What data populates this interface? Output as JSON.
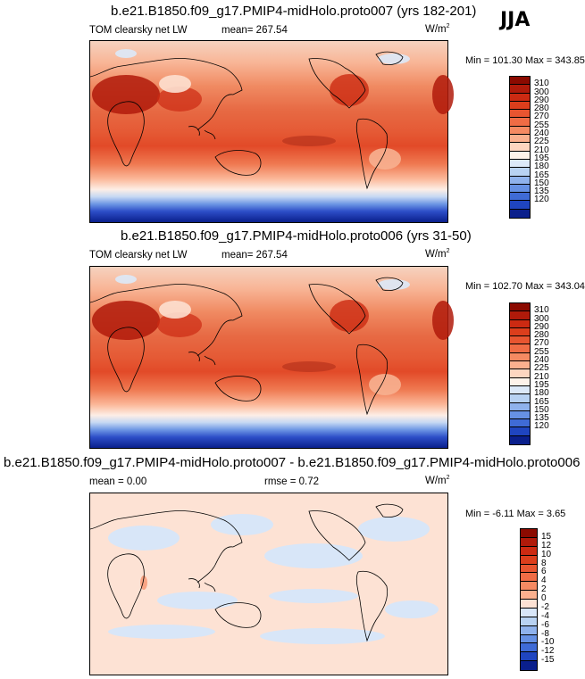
{
  "season": "JJA",
  "panels": [
    {
      "title": "b.e21.B1850.f09_g17.PMIP4-midHolo.proto007 (yrs 182-201)",
      "left_label": "TOM clearsky net LW",
      "center_label": "mean= 267.54",
      "units": "W/m",
      "units_sup": "2",
      "minmax": "Min = 101.30 Max = 343.85",
      "colorbar_labels": [
        "310",
        "300",
        "290",
        "280",
        "270",
        "255",
        "240",
        "225",
        "210",
        "195",
        "180",
        "165",
        "150",
        "135",
        "120"
      ],
      "colorbar_colors": [
        "#8b0a00",
        "#b01a0a",
        "#cc2a12",
        "#dc3e1c",
        "#e85530",
        "#f06c45",
        "#f68a62",
        "#fbb08e",
        "#fdd6c0",
        "#fef3ea",
        "#dce9f8",
        "#b8d2f2",
        "#8fb2ec",
        "#6691e4",
        "#3f6bd6",
        "#1f45c0",
        "#0a1f8c"
      ]
    },
    {
      "title": "b.e21.B1850.f09_g17.PMIP4-midHolo.proto006 (yrs 31-50)",
      "left_label": "TOM clearsky net LW",
      "center_label": "mean= 267.54",
      "units": "W/m",
      "units_sup": "2",
      "minmax": "Min = 102.70 Max = 343.04",
      "colorbar_labels": [
        "310",
        "300",
        "290",
        "280",
        "270",
        "255",
        "240",
        "225",
        "210",
        "195",
        "180",
        "165",
        "150",
        "135",
        "120"
      ],
      "colorbar_colors": [
        "#8b0a00",
        "#b01a0a",
        "#cc2a12",
        "#dc3e1c",
        "#e85530",
        "#f06c45",
        "#f68a62",
        "#fbb08e",
        "#fdd6c0",
        "#fef3ea",
        "#dce9f8",
        "#b8d2f2",
        "#8fb2ec",
        "#6691e4",
        "#3f6bd6",
        "#1f45c0",
        "#0a1f8c"
      ]
    },
    {
      "title": "b.e21.B1850.f09_g17.PMIP4-midHolo.proto007 - b.e21.B1850.f09_g17.PMIP4-midHolo.proto006",
      "left_label": "mean =   0.00",
      "center_label": "rmse =   0.72",
      "units": "W/m",
      "units_sup": "2",
      "minmax": "Min =  -6.11 Max =   3.65",
      "colorbar_labels": [
        "15",
        "12",
        "10",
        "8",
        "6",
        "4",
        "2",
        "0",
        "-2",
        "-4",
        "-6",
        "-8",
        "-10",
        "-12",
        "-15"
      ],
      "colorbar_colors": [
        "#8b0a00",
        "#b01a0a",
        "#cc2a12",
        "#dc3e1c",
        "#e85530",
        "#f06c45",
        "#f68a62",
        "#fbb08e",
        "#fde2d4",
        "#d8e6f8",
        "#b8d2f2",
        "#8fb2ec",
        "#6691e4",
        "#3f6bd6",
        "#1f45c0",
        "#0a1f8c"
      ]
    }
  ]
}
